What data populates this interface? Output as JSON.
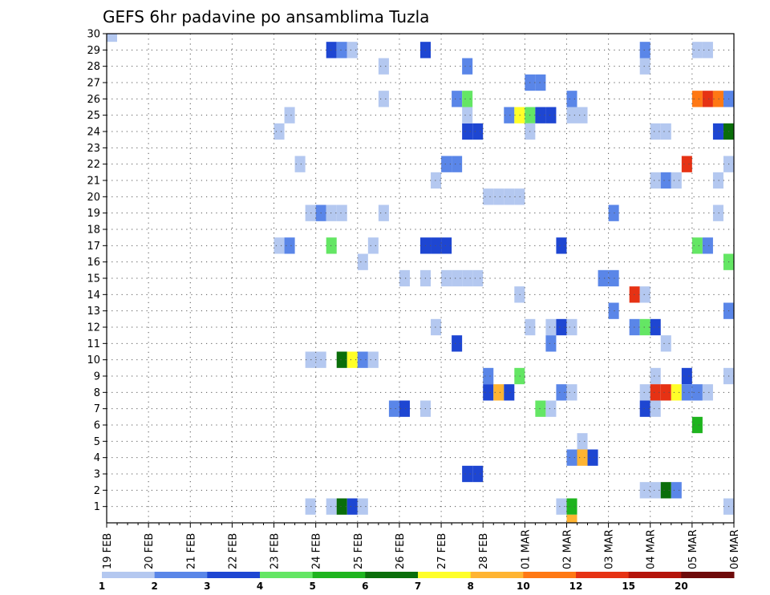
{
  "chart_data": {
    "type": "heatmap",
    "title": "GEFS 6hr padavine po ansamblima Tuzla",
    "xlabel": "",
    "ylabel": "",
    "x_tick_labels": [
      "19 FEB",
      "20 FEB",
      "21 FEB",
      "22 FEB",
      "23 FEB",
      "24 FEB",
      "25 FEB",
      "26 FEB",
      "27 FEB",
      "28 FEB",
      "01 MAR",
      "02 MAR",
      "03 MAR",
      "04 MAR",
      "05 MAR",
      "06 MAR"
    ],
    "y_tick_labels": [
      "1",
      "2",
      "3",
      "4",
      "5",
      "6",
      "7",
      "8",
      "9",
      "10",
      "11",
      "12",
      "13",
      "14",
      "15",
      "16",
      "17",
      "18",
      "19",
      "20",
      "21",
      "22",
      "23",
      "24",
      "25",
      "26",
      "27",
      "28",
      "29",
      "30"
    ],
    "ylim": [
      0,
      30
    ],
    "grid": true,
    "colorbar": {
      "colors": [
        "#b4c8f0",
        "#5a86e8",
        "#1e46d2",
        "#64e664",
        "#1eb41e",
        "#0a6e0a",
        "#ffff28",
        "#ffb432",
        "#ff7814",
        "#e63214",
        "#b4140a",
        "#6e0a0a"
      ],
      "labels": [
        "1",
        "2",
        "3",
        "4",
        "5",
        "6",
        "7",
        "8",
        "10",
        "12",
        "15",
        "20"
      ]
    },
    "cells": [
      {
        "d": "19 FEB 00z",
        "m": 30,
        "l": "1"
      },
      {
        "d": "27 FEB 12z",
        "m": 24,
        "l": "3"
      },
      {
        "d": "27 FEB 18z",
        "m": 24,
        "l": "3"
      },
      {
        "d": "24 FEB 06z",
        "m": 29,
        "l": "3"
      },
      {
        "d": "24 FEB 12z",
        "m": 29,
        "l": "2"
      },
      {
        "d": "24 FEB 18z",
        "m": 29,
        "l": "1"
      },
      {
        "d": "26 FEB 12z",
        "m": 29,
        "l": "3"
      },
      {
        "d": "03 MAR 18z",
        "m": 29,
        "l": "2"
      },
      {
        "d": "05 MAR 00z",
        "m": 29,
        "l": "1"
      },
      {
        "d": "05 MAR 06z",
        "m": 29,
        "l": "1"
      },
      {
        "d": "25 FEB 12z",
        "m": 28,
        "l": "1"
      },
      {
        "d": "27 FEB 12z",
        "m": 28,
        "l": "2"
      },
      {
        "d": "03 MAR 18z",
        "m": 28,
        "l": "1"
      },
      {
        "d": "01 MAR 00z",
        "m": 27,
        "l": "2"
      },
      {
        "d": "01 MAR 06z",
        "m": 27,
        "l": "2"
      },
      {
        "d": "25 FEB 12z",
        "m": 26,
        "l": "1"
      },
      {
        "d": "27 FEB 06z",
        "m": 26,
        "l": "2"
      },
      {
        "d": "27 FEB 12z",
        "m": 26,
        "l": "4"
      },
      {
        "d": "02 MAR 00z",
        "m": 26,
        "l": "2"
      },
      {
        "d": "05 MAR 00z",
        "m": 26,
        "l": "10"
      },
      {
        "d": "05 MAR 06z",
        "m": 26,
        "l": "12"
      },
      {
        "d": "05 MAR 12z",
        "m": 26,
        "l": "10"
      },
      {
        "d": "05 MAR 18z",
        "m": 26,
        "l": "2"
      },
      {
        "d": "23 FEB 06z",
        "m": 25,
        "l": "1"
      },
      {
        "d": "27 FEB 12z",
        "m": 25,
        "l": "1"
      },
      {
        "d": "28 FEB 12z",
        "m": 25,
        "l": "2"
      },
      {
        "d": "28 FEB 18z",
        "m": 25,
        "l": "7"
      },
      {
        "d": "01 MAR 00z",
        "m": 25,
        "l": "4"
      },
      {
        "d": "01 MAR 06z",
        "m": 25,
        "l": "3"
      },
      {
        "d": "01 MAR 12z",
        "m": 25,
        "l": "3"
      },
      {
        "d": "02 MAR 00z",
        "m": 25,
        "l": "1"
      },
      {
        "d": "02 MAR 06z",
        "m": 25,
        "l": "1"
      },
      {
        "d": "23 FEB 00z",
        "m": 24,
        "l": "1"
      },
      {
        "d": "01 MAR 00z",
        "m": 24,
        "l": "1"
      },
      {
        "d": "04 MAR 00z",
        "m": 24,
        "l": "1"
      },
      {
        "d": "04 MAR 06z",
        "m": 24,
        "l": "1"
      },
      {
        "d": "05 MAR 12z",
        "m": 24,
        "l": "3"
      },
      {
        "d": "05 MAR 18z",
        "m": 24,
        "l": "6"
      },
      {
        "d": "23 FEB 12z",
        "m": 22,
        "l": "1"
      },
      {
        "d": "27 FEB 00z",
        "m": 22,
        "l": "2"
      },
      {
        "d": "27 FEB 06z",
        "m": 22,
        "l": "2"
      },
      {
        "d": "04 MAR 18z",
        "m": 22,
        "l": "12"
      },
      {
        "d": "05 MAR 18z",
        "m": 22,
        "l": "1"
      },
      {
        "d": "26 FEB 18z",
        "m": 21,
        "l": "1"
      },
      {
        "d": "04 MAR 00z",
        "m": 21,
        "l": "1"
      },
      {
        "d": "04 MAR 06z",
        "m": 21,
        "l": "2"
      },
      {
        "d": "04 MAR 12z",
        "m": 21,
        "l": "1"
      },
      {
        "d": "05 MAR 12z",
        "m": 21,
        "l": "1"
      },
      {
        "d": "28 FEB 00z",
        "m": 20,
        "l": "1"
      },
      {
        "d": "28 FEB 06z",
        "m": 20,
        "l": "1"
      },
      {
        "d": "28 FEB 12z",
        "m": 20,
        "l": "1"
      },
      {
        "d": "28 FEB 18z",
        "m": 20,
        "l": "1"
      },
      {
        "d": "23 FEB 18z",
        "m": 19,
        "l": "1"
      },
      {
        "d": "24 FEB 00z",
        "m": 19,
        "l": "2"
      },
      {
        "d": "24 FEB 06z",
        "m": 19,
        "l": "1"
      },
      {
        "d": "24 FEB 12z",
        "m": 19,
        "l": "1"
      },
      {
        "d": "25 FEB 12z",
        "m": 19,
        "l": "1"
      },
      {
        "d": "03 MAR 00z",
        "m": 19,
        "l": "2"
      },
      {
        "d": "05 MAR 12z",
        "m": 19,
        "l": "1"
      },
      {
        "d": "23 FEB 00z",
        "m": 17,
        "l": "1"
      },
      {
        "d": "23 FEB 06z",
        "m": 17,
        "l": "2"
      },
      {
        "d": "24 FEB 06z",
        "m": 17,
        "l": "4"
      },
      {
        "d": "25 FEB 06z",
        "m": 17,
        "l": "1"
      },
      {
        "d": "26 FEB 12z",
        "m": 17,
        "l": "3"
      },
      {
        "d": "26 FEB 18z",
        "m": 17,
        "l": "3"
      },
      {
        "d": "27 FEB 00z",
        "m": 17,
        "l": "3"
      },
      {
        "d": "01 MAR 18z",
        "m": 17,
        "l": "3"
      },
      {
        "d": "05 MAR 00z",
        "m": 17,
        "l": "4"
      },
      {
        "d": "05 MAR 06z",
        "m": 17,
        "l": "2"
      },
      {
        "d": "25 FEB 00z",
        "m": 16,
        "l": "1"
      },
      {
        "d": "05 MAR 18z",
        "m": 16,
        "l": "4"
      },
      {
        "d": "26 FEB 00z",
        "m": 15,
        "l": "1"
      },
      {
        "d": "26 FEB 12z",
        "m": 15,
        "l": "1"
      },
      {
        "d": "27 FEB 00z",
        "m": 15,
        "l": "1"
      },
      {
        "d": "27 FEB 06z",
        "m": 15,
        "l": "1"
      },
      {
        "d": "27 FEB 12z",
        "m": 15,
        "l": "1"
      },
      {
        "d": "27 FEB 18z",
        "m": 15,
        "l": "1"
      },
      {
        "d": "02 MAR 18z",
        "m": 15,
        "l": "2"
      },
      {
        "d": "03 MAR 00z",
        "m": 15,
        "l": "2"
      },
      {
        "d": "28 FEB 18z",
        "m": 14,
        "l": "1"
      },
      {
        "d": "03 MAR 12z",
        "m": 14,
        "l": "12"
      },
      {
        "d": "03 MAR 18z",
        "m": 14,
        "l": "1"
      },
      {
        "d": "06 MAR 00z",
        "m": 14,
        "l": "6"
      },
      {
        "d": "03 MAR 00z",
        "m": 13,
        "l": "2"
      },
      {
        "d": "05 MAR 18z",
        "m": 13,
        "l": "2"
      },
      {
        "d": "06 MAR 00z",
        "m": 13,
        "l": "5"
      },
      {
        "d": "26 FEB 18z",
        "m": 12,
        "l": "1"
      },
      {
        "d": "01 MAR 00z",
        "m": 12,
        "l": "1"
      },
      {
        "d": "01 MAR 12z",
        "m": 12,
        "l": "1"
      },
      {
        "d": "01 MAR 18z",
        "m": 12,
        "l": "3"
      },
      {
        "d": "02 MAR 00z",
        "m": 12,
        "l": "1"
      },
      {
        "d": "03 MAR 12z",
        "m": 12,
        "l": "2"
      },
      {
        "d": "03 MAR 18z",
        "m": 12,
        "l": "4"
      },
      {
        "d": "04 MAR 00z",
        "m": 12,
        "l": "3"
      },
      {
        "d": "27 FEB 06z",
        "m": 11,
        "l": "3"
      },
      {
        "d": "01 MAR 12z",
        "m": 11,
        "l": "2"
      },
      {
        "d": "04 MAR 06z",
        "m": 11,
        "l": "1"
      },
      {
        "d": "23 FEB 18z",
        "m": 10,
        "l": "1"
      },
      {
        "d": "24 FEB 00z",
        "m": 10,
        "l": "1"
      },
      {
        "d": "24 FEB 12z",
        "m": 10,
        "l": "6"
      },
      {
        "d": "24 FEB 18z",
        "m": 10,
        "l": "7"
      },
      {
        "d": "25 FEB 00z",
        "m": 10,
        "l": "2"
      },
      {
        "d": "25 FEB 06z",
        "m": 10,
        "l": "1"
      },
      {
        "d": "04 MAR 00z",
        "m": 9,
        "l": "1"
      },
      {
        "d": "04 MAR 18z",
        "m": 9,
        "l": "3"
      },
      {
        "d": "05 MAR 18z",
        "m": 9,
        "l": "1"
      },
      {
        "d": "28 FEB 18z",
        "m": 9,
        "l": "4"
      },
      {
        "d": "28 FEB 00z",
        "m": 9,
        "l": "2"
      },
      {
        "d": "28 FEB 00z",
        "m": 8,
        "l": "3"
      },
      {
        "d": "28 FEB 06z",
        "m": 8,
        "l": "8"
      },
      {
        "d": "28 FEB 12z",
        "m": 8,
        "l": "3"
      },
      {
        "d": "01 MAR 18z",
        "m": 8,
        "l": "2"
      },
      {
        "d": "02 MAR 00z",
        "m": 8,
        "l": "1"
      },
      {
        "d": "03 MAR 18z",
        "m": 8,
        "l": "1"
      },
      {
        "d": "04 MAR 00z",
        "m": 8,
        "l": "12"
      },
      {
        "d": "04 MAR 06z",
        "m": 8,
        "l": "12"
      },
      {
        "d": "04 MAR 12z",
        "m": 8,
        "l": "7"
      },
      {
        "d": "04 MAR 18z",
        "m": 8,
        "l": "2"
      },
      {
        "d": "05 MAR 00z",
        "m": 8,
        "l": "2"
      },
      {
        "d": "05 MAR 06z",
        "m": 8,
        "l": "1"
      },
      {
        "d": "25 FEB 18z",
        "m": 7,
        "l": "2"
      },
      {
        "d": "26 FEB 00z",
        "m": 7,
        "l": "3"
      },
      {
        "d": "26 FEB 12z",
        "m": 7,
        "l": "1"
      },
      {
        "d": "01 MAR 06z",
        "m": 7,
        "l": "4"
      },
      {
        "d": "01 MAR 12z",
        "m": 7,
        "l": "1"
      },
      {
        "d": "03 MAR 18z",
        "m": 7,
        "l": "3"
      },
      {
        "d": "04 MAR 00z",
        "m": 7,
        "l": "1"
      },
      {
        "d": "05 MAR 00z",
        "m": 6,
        "l": "5"
      },
      {
        "d": "02 MAR 06z",
        "m": 5,
        "l": "1"
      },
      {
        "d": "02 MAR 00z",
        "m": 4,
        "l": "2"
      },
      {
        "d": "02 MAR 06z",
        "m": 4,
        "l": "8"
      },
      {
        "d": "02 MAR 12z",
        "m": 4,
        "l": "3"
      },
      {
        "d": "27 FEB 12z",
        "m": 3,
        "l": "3"
      },
      {
        "d": "27 FEB 18z",
        "m": 3,
        "l": "3"
      },
      {
        "d": "03 MAR 18z",
        "m": 2,
        "l": "1"
      },
      {
        "d": "04 MAR 00z",
        "m": 2,
        "l": "1"
      },
      {
        "d": "04 MAR 06z",
        "m": 2,
        "l": "6"
      },
      {
        "d": "04 MAR 12z",
        "m": 2,
        "l": "2"
      },
      {
        "d": "23 FEB 18z",
        "m": 1,
        "l": "1"
      },
      {
        "d": "24 FEB 06z",
        "m": 1,
        "l": "1"
      },
      {
        "d": "24 FEB 12z",
        "m": 1,
        "l": "6"
      },
      {
        "d": "24 FEB 18z",
        "m": 1,
        "l": "3"
      },
      {
        "d": "25 FEB 00z",
        "m": 1,
        "l": "1"
      },
      {
        "d": "01 MAR 18z",
        "m": 1,
        "l": "1"
      },
      {
        "d": "02 MAR 00z",
        "m": 1,
        "l": "5"
      },
      {
        "d": "05 MAR 18z",
        "m": 1,
        "l": "1"
      },
      {
        "d": "06 MAR 00z",
        "m": 1,
        "l": "2"
      },
      {
        "d": "02 MAR 00z",
        "m": 0,
        "l": "8"
      }
    ]
  }
}
